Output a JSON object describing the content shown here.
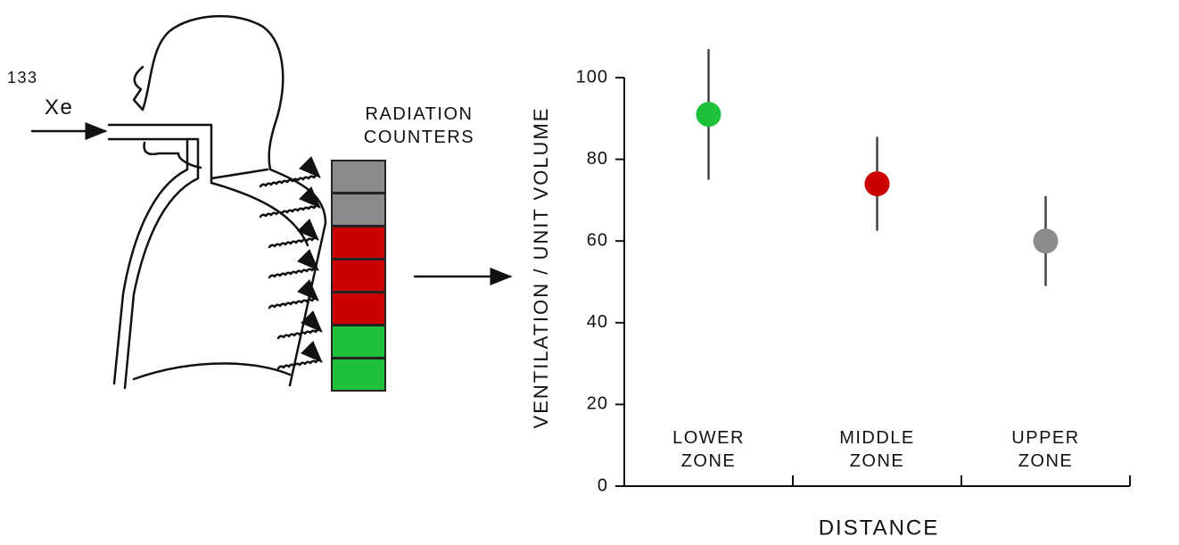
{
  "diagram": {
    "isotope_mass": "133",
    "isotope": "Xe",
    "counters_label": "RADIATION COUNTERS"
  },
  "chart_data": {
    "type": "errorbar",
    "ylabel": "VENTILATION / UNIT VOLUME",
    "xlabel": "DISTANCE",
    "categories": [
      "LOWER ZONE",
      "MIDDLE ZONE",
      "UPPER ZONE"
    ],
    "values": [
      91,
      74,
      60
    ],
    "errors": [
      16,
      11.5,
      11
    ],
    "colors": [
      "#1fc13a",
      "#cc0000",
      "#8c8c8c"
    ],
    "ylim": [
      0,
      100
    ],
    "yticks": [
      0,
      20,
      40,
      60,
      80,
      100
    ]
  }
}
